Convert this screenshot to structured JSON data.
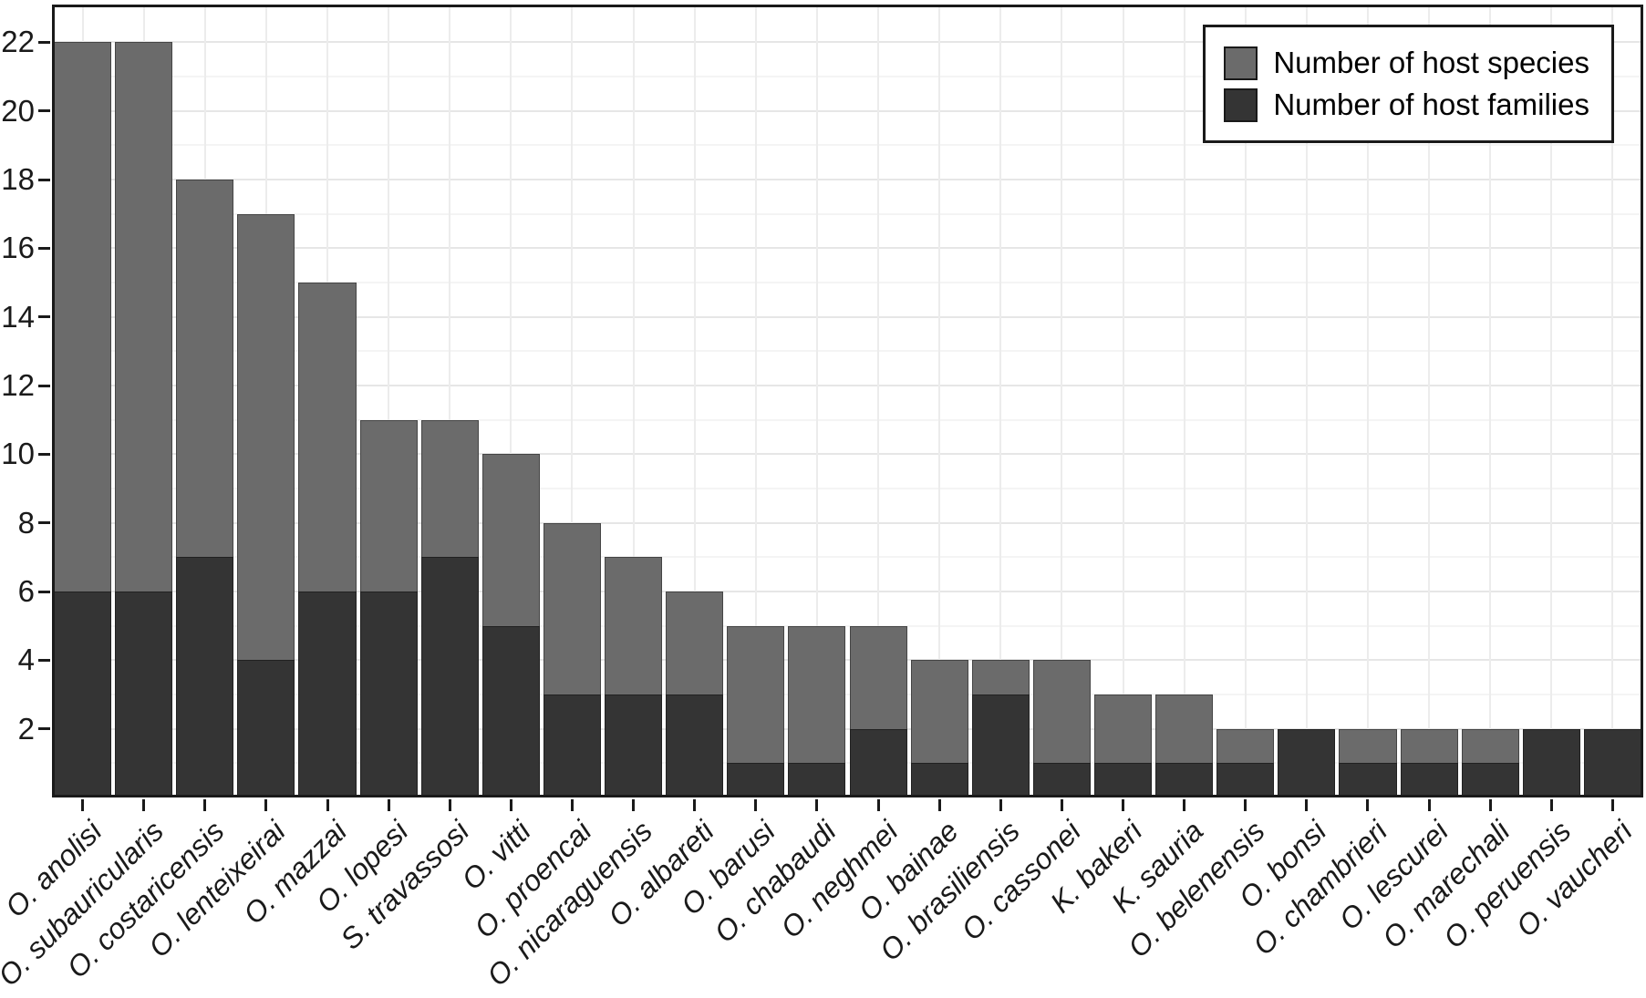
{
  "chart_data": {
    "type": "bar",
    "bar_mode": "overlay",
    "title": "",
    "xlabel": "",
    "ylabel": "",
    "ylim": [
      0,
      23.1
    ],
    "yticks": [
      2,
      4,
      6,
      8,
      10,
      12,
      14,
      16,
      18,
      20,
      22
    ],
    "grid": "major+minor horizontal, major vertical at category centers",
    "legend_position": "top-right",
    "categories": [
      "O. anolisi",
      "O. subauricularis",
      "O. costaricensis",
      "O. lenteixeirai",
      "O. mazzai",
      "O. lopesi",
      "S. travassosi",
      "O. vitti",
      "O. proencai",
      "O. nicaraguensis",
      "O. albareti",
      "O. barusi",
      "O. chabaudi",
      "O. neghmei",
      "O. bainae",
      "O. brasiliensis",
      "O. cassonei",
      "K. bakeri",
      "K. sauria",
      "O. belenensis",
      "O. bonsi",
      "O. chambrieri",
      "O. lescurei",
      "O. marechali",
      "O. peruensis",
      "O. vaucheri"
    ],
    "series": [
      {
        "name": "Number of host species",
        "color": "#6b6b6b",
        "values": [
          22,
          22,
          18,
          17,
          15,
          11,
          11,
          10,
          8,
          7,
          6,
          5,
          5,
          5,
          4,
          4,
          4,
          3,
          3,
          2,
          2,
          2,
          2,
          2,
          2,
          2
        ]
      },
      {
        "name": "Number of host families",
        "color": "#343434",
        "values": [
          6,
          6,
          7,
          4,
          6,
          6,
          7,
          5,
          3,
          3,
          3,
          1,
          1,
          2,
          1,
          3,
          1,
          1,
          1,
          1,
          2,
          1,
          1,
          1,
          2,
          2
        ]
      }
    ],
    "colors": {
      "background": "#ffffff",
      "panel_border": "#1a1a1a",
      "grid_major": "#e6e6e6",
      "grid_minor": "#f4f4f4",
      "tick": "#1a1a1a",
      "text": "#1a1a1a"
    }
  }
}
